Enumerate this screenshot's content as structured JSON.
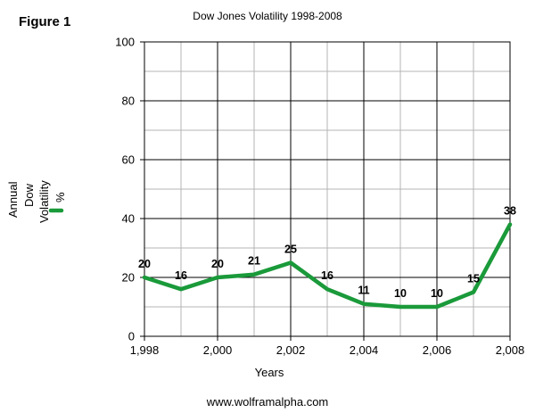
{
  "figure_label": "Figure 1",
  "source_credit": "www.wolframalpha.com",
  "chart_data": {
    "type": "line",
    "title": "Dow Jones Volatility 1998-2008",
    "xlabel": "Years",
    "ylabel_lines": [
      "Annual",
      "Dow",
      "Volatility"
    ],
    "legend_symbol_label": "%",
    "x": [
      1998,
      1999,
      2000,
      2001,
      2002,
      2003,
      2004,
      2005,
      2006,
      2007,
      2008
    ],
    "series": [
      {
        "values": [
          20,
          16,
          20,
          21,
          25,
          16,
          11,
          10,
          10,
          15,
          38
        ],
        "color": "#1a9a3a"
      }
    ],
    "xlim": [
      1998,
      2008
    ],
    "ylim": [
      0,
      100
    ],
    "x_ticks": [
      "1,998",
      "2,000",
      "2,002",
      "2,004",
      "2,006",
      "2,008"
    ],
    "x_tick_values": [
      1998,
      2000,
      2002,
      2004,
      2006,
      2008
    ],
    "y_ticks": [
      "0",
      "20",
      "40",
      "60",
      "80",
      "100"
    ],
    "y_tick_values": [
      0,
      20,
      40,
      60,
      80,
      100
    ],
    "grid": true,
    "data_labels": true
  }
}
